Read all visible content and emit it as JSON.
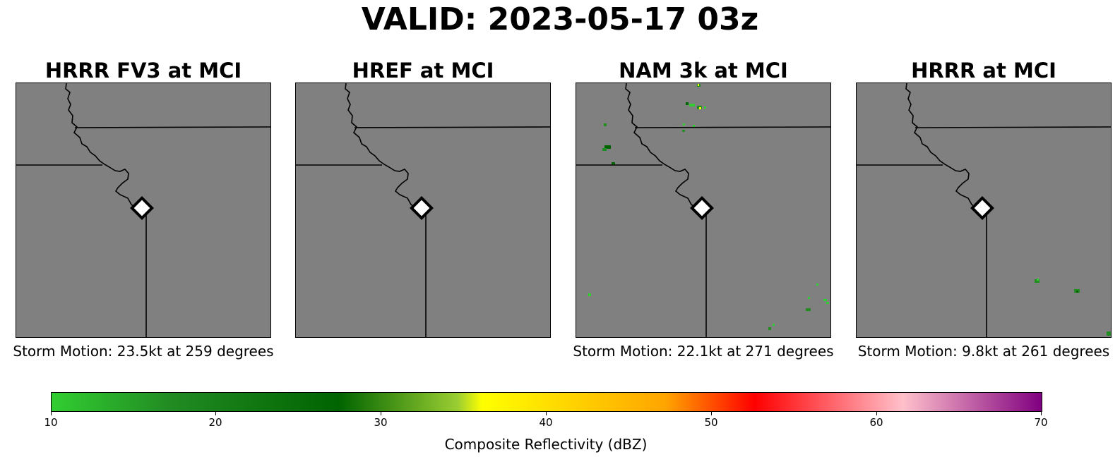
{
  "title": "VALID: 2023-05-17 03z",
  "panels": [
    {
      "title": "HRRR FV3 at MCI",
      "storm_motion": "Storm Motion: 23.5kt at 259 degrees"
    },
    {
      "title": "HREF at MCI",
      "storm_motion": ""
    },
    {
      "title": "NAM 3k at MCI",
      "storm_motion": "Storm Motion: 22.1kt at 271 degrees"
    },
    {
      "title": "HRRR at MCI",
      "storm_motion": "Storm Motion: 9.8kt at 261 degrees"
    }
  ],
  "colorbar": {
    "label": "Composite Reflectivity (dBZ)",
    "ticks": [
      "10",
      "20",
      "30",
      "40",
      "50",
      "60",
      "70"
    ],
    "colors": {
      "low": "#32cd32",
      "mid_green": "#006400",
      "yellow": "#ffff00",
      "orange": "#ffa500",
      "red": "#ff0000",
      "pink": "#ffc0cb",
      "high": "#800080"
    }
  },
  "map_colors": {
    "background": "#808080",
    "borders": "#000000",
    "station_marker": "#ffffff"
  }
}
